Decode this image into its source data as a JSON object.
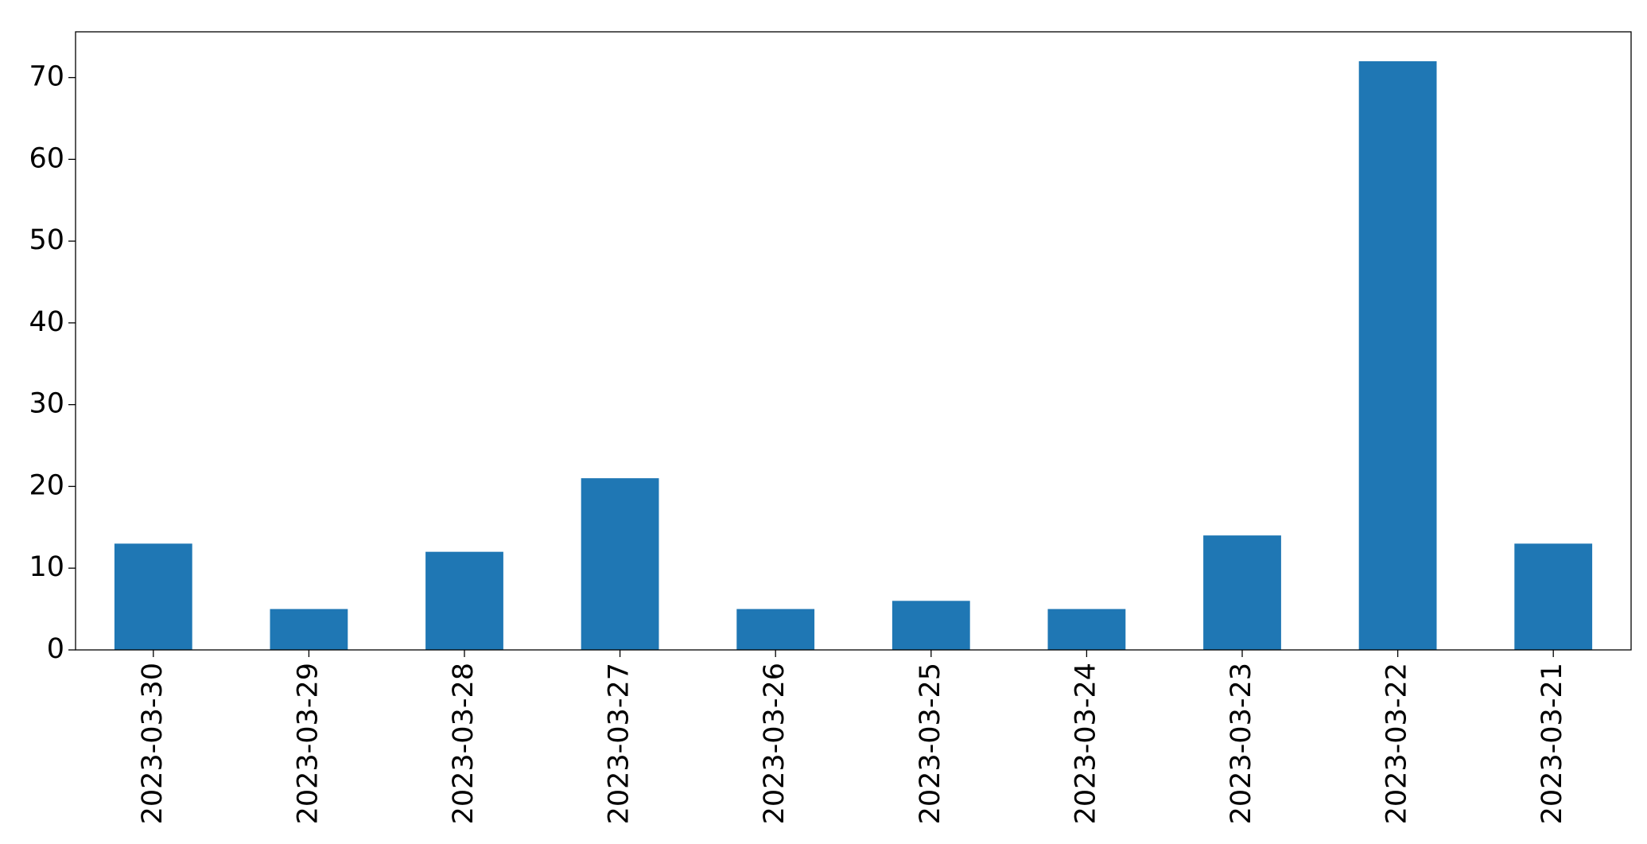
{
  "chart_data": {
    "type": "bar",
    "categories": [
      "2023-03-30",
      "2023-03-29",
      "2023-03-28",
      "2023-03-27",
      "2023-03-26",
      "2023-03-25",
      "2023-03-24",
      "2023-03-23",
      "2023-03-22",
      "2023-03-21"
    ],
    "values": [
      13,
      5,
      12,
      21,
      5,
      6,
      5,
      14,
      72,
      13
    ],
    "color": "#1f77b4",
    "ylim": [
      0,
      75.6
    ],
    "yticks": [
      0,
      10,
      20,
      30,
      40,
      50,
      60,
      70
    ],
    "grid": false
  }
}
